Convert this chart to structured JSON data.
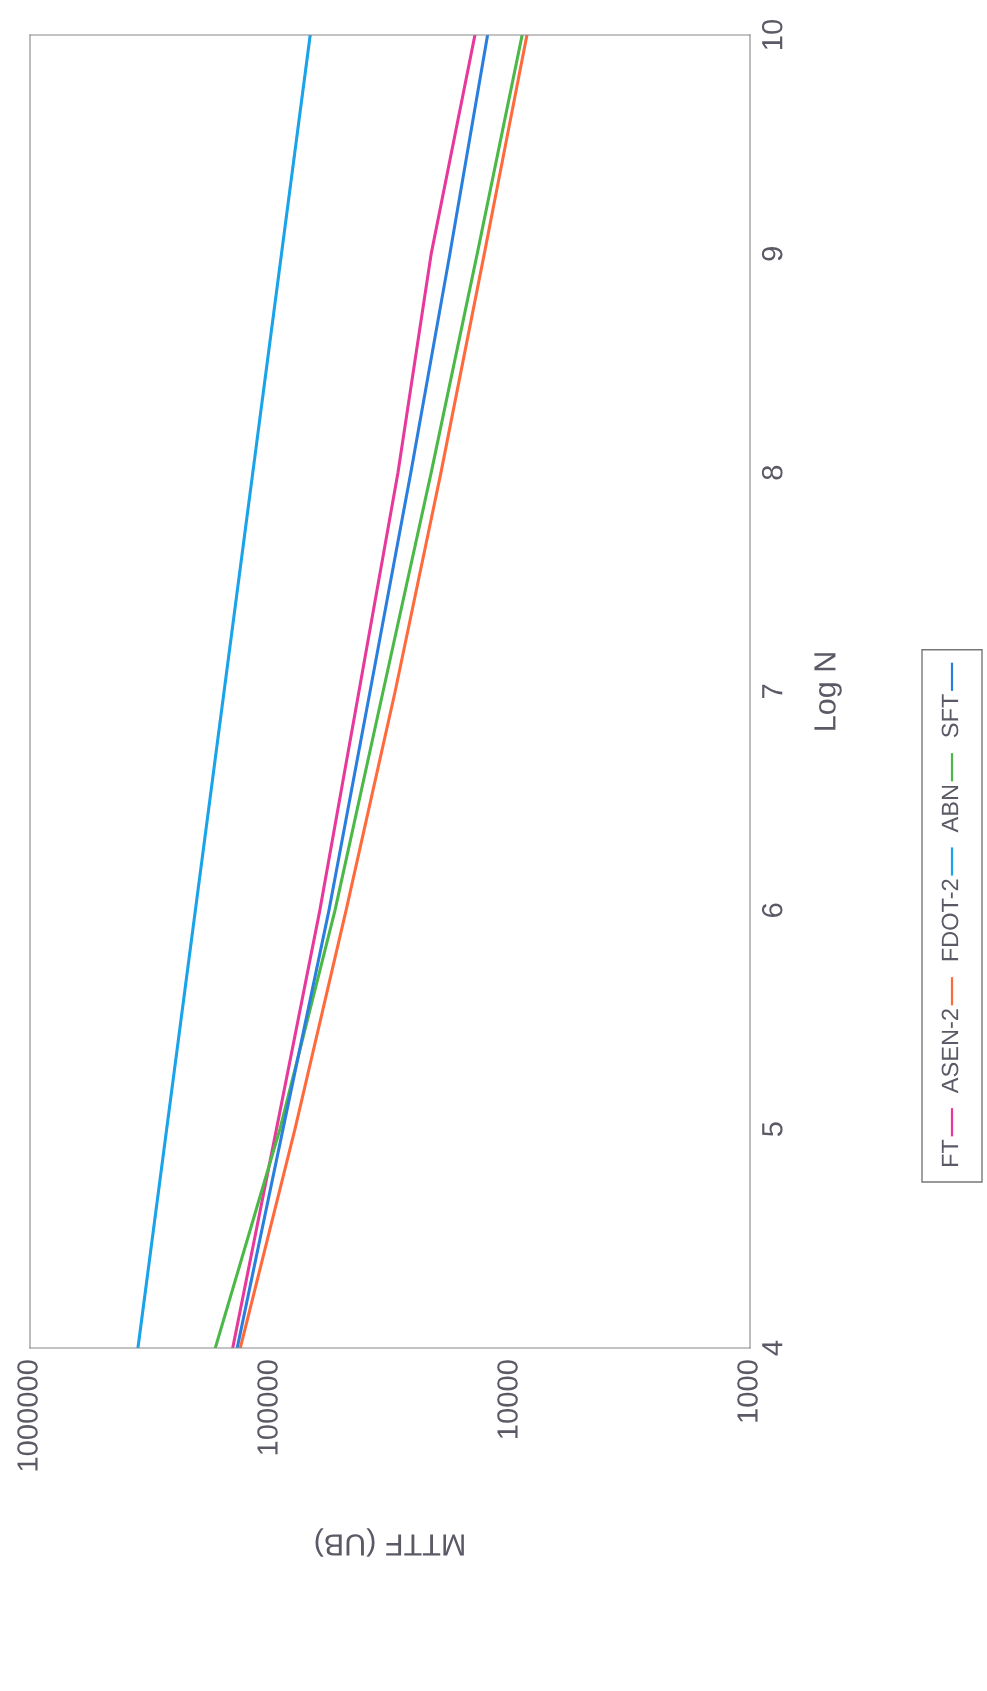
{
  "chart_data": {
    "type": "line",
    "xlabel": "MTTF (UB)",
    "ylabel": "Log N",
    "log": "x",
    "grid": false,
    "legend": "right",
    "marker": "none",
    "line_style": "solid",
    "xlim": [
      1000000,
      1000
    ],
    "xticks": [
      1000000,
      100000,
      10000,
      1000
    ],
    "ylim": [
      4,
      10
    ],
    "yticks": [
      4,
      5,
      6,
      7,
      8,
      9,
      10
    ],
    "series": [
      {
        "name": "FT",
        "color": "#e6399b",
        "x": [
          143000,
          94000,
          62000,
          42600,
          29300,
          21300,
          14000
        ],
        "values": [
          4,
          5,
          6,
          7,
          8,
          9,
          10
        ]
      },
      {
        "name": "ASEN-2",
        "color": "#ff6a3d",
        "x": [
          133000,
          78700,
          48200,
          30100,
          19400,
          12800,
          8500
        ],
        "values": [
          4,
          5,
          6,
          7,
          8,
          9,
          10
        ]
      },
      {
        "name": "FDOT-2",
        "color": "#1aa3e8",
        "x": [
          355000,
          68000
        ],
        "values": [
          4,
          10
        ]
      },
      {
        "name": "ABN",
        "color": "#4cb848",
        "x": [
          169000,
          90900,
          53600,
          33800,
          21300,
          13700,
          8900
        ],
        "values": [
          4,
          5,
          6,
          7,
          8,
          9,
          10
        ]
      },
      {
        "name": "SFT",
        "color": "#2a7fde",
        "x": [
          137000,
          88300,
          56800,
          38300,
          25900,
          17800,
          12400
        ],
        "values": [
          4,
          5,
          6,
          7,
          8,
          9,
          10
        ]
      }
    ]
  }
}
